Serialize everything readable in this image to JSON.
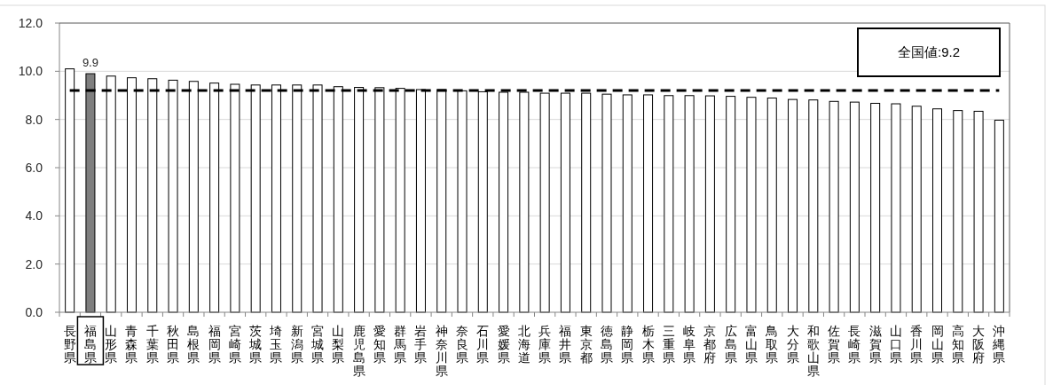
{
  "chart_data": {
    "type": "bar",
    "categories": [
      "長野県",
      "福島県",
      "山形県",
      "青森県",
      "千葉県",
      "秋田県",
      "島根県",
      "福岡県",
      "宮崎県",
      "茨城県",
      "埼玉県",
      "新潟県",
      "宮城県",
      "山梨県",
      "鹿児島県",
      "愛知県",
      "群馬県",
      "岩手県",
      "神奈川県",
      "奈良県",
      "石川県",
      "愛媛県",
      "北海道",
      "兵庫県",
      "福井県",
      "東京都",
      "徳島県",
      "静岡県",
      "栃木県",
      "三重県",
      "岐阜県",
      "京都府",
      "広島県",
      "富山県",
      "鳥取県",
      "大分県",
      "和歌山県",
      "佐賀県",
      "長崎県",
      "滋賀県",
      "山口県",
      "香川県",
      "岡山県",
      "高知県",
      "大阪府",
      "沖縄県"
    ],
    "values": [
      10.1,
      9.9,
      9.8,
      9.73,
      9.69,
      9.63,
      9.58,
      9.51,
      9.46,
      9.43,
      9.43,
      9.43,
      9.43,
      9.36,
      9.33,
      9.32,
      9.29,
      9.24,
      9.24,
      9.19,
      9.15,
      9.13,
      9.13,
      9.09,
      9.09,
      9.09,
      9.05,
      9.02,
      9.02,
      8.99,
      8.99,
      8.98,
      8.96,
      8.92,
      8.89,
      8.83,
      8.81,
      8.75,
      8.72,
      8.67,
      8.65,
      8.55,
      8.44,
      8.37,
      8.34,
      7.97
    ],
    "colors": [
      "#ffffff",
      "#7f7f7f",
      "#ffffff",
      "#ffffff",
      "#ffffff",
      "#ffffff",
      "#ffffff",
      "#ffffff",
      "#ffffff",
      "#ffffff",
      "#ffffff",
      "#ffffff",
      "#ffffff",
      "#ffffff",
      "#ffffff",
      "#ffffff",
      "#ffffff",
      "#ffffff",
      "#ffffff",
      "#ffffff",
      "#ffffff",
      "#ffffff",
      "#ffffff",
      "#ffffff",
      "#ffffff",
      "#ffffff",
      "#ffffff",
      "#ffffff",
      "#ffffff",
      "#ffffff",
      "#ffffff",
      "#ffffff",
      "#ffffff",
      "#ffffff",
      "#ffffff",
      "#ffffff",
      "#ffffff",
      "#ffffff",
      "#ffffff",
      "#ffffff",
      "#ffffff",
      "#ffffff",
      "#ffffff",
      "#ffffff",
      "#ffffff",
      "#ffffff"
    ],
    "value_labels": [
      null,
      "9.9",
      null,
      null,
      null,
      null,
      null,
      null,
      null,
      null,
      null,
      null,
      null,
      null,
      null,
      null,
      null,
      null,
      null,
      null,
      null,
      null,
      null,
      null,
      null,
      null,
      null,
      null,
      null,
      null,
      null,
      null,
      null,
      null,
      null,
      null,
      null,
      null,
      null,
      null,
      null,
      null,
      null,
      null,
      null,
      null
    ],
    "ylim": [
      0,
      12
    ],
    "yticks": [
      {
        "value": 0,
        "label": "0.0"
      },
      {
        "value": 2,
        "label": "2.0"
      },
      {
        "value": 4,
        "label": "4.0"
      },
      {
        "value": 6,
        "label": "6.0"
      },
      {
        "value": 8,
        "label": "8.0"
      },
      {
        "value": 10,
        "label": "10.0"
      },
      {
        "value": 12,
        "label": "12.0"
      }
    ],
    "grid": "y",
    "ref_lines": [
      {
        "axis": "y",
        "value": 9.2,
        "label": "全国値:9.2",
        "color": "#000000",
        "line_style": "dashed"
      }
    ]
  }
}
